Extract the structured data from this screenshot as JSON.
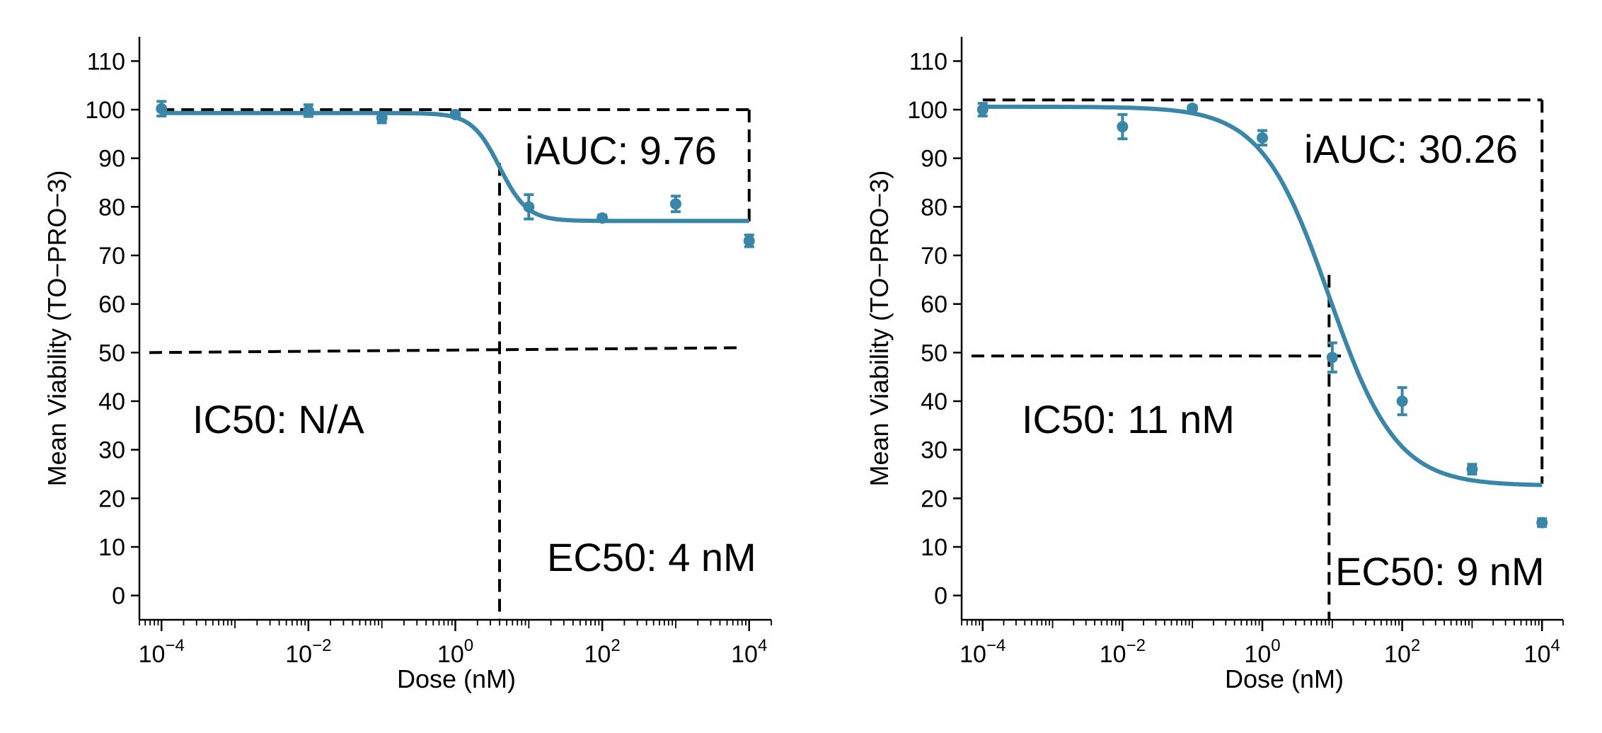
{
  "chart_data": [
    {
      "type": "scatter",
      "xlabel": "Dose (nM)",
      "ylabel": "Mean Viability (TO−PRO−3)",
      "x_scale": "log10",
      "xlim": [
        5e-05,
        20000
      ],
      "ylim": [
        -5,
        115
      ],
      "x_ticks": [
        "10^-4",
        "10^-2",
        "10^0",
        "10^2",
        "10^4"
      ],
      "y_ticks": [
        0,
        10,
        20,
        30,
        40,
        50,
        60,
        70,
        80,
        90,
        100,
        110
      ],
      "grid": false,
      "color": "#3a86a8",
      "series": [
        {
          "x": [
            0.0001,
            0.01,
            0.1,
            1,
            10,
            100,
            1000,
            10000
          ],
          "y": [
            100.2,
            99.8,
            98.3,
            99.0,
            80.0,
            77.7,
            80.6,
            73.0
          ],
          "err": [
            1.5,
            1.2,
            1.0,
            0.5,
            2.5,
            0.6,
            1.6,
            1.2
          ]
        }
      ],
      "fit": {
        "top": 99.3,
        "bottom": 77.1,
        "ec50": 4,
        "hill": 2.3
      },
      "reference_lines": {
        "top_y": 100,
        "bottom_y": 77,
        "half_y": 50,
        "half_y_end": 51,
        "ec50_x": 4,
        "ec50_y_top": 89,
        "right_x": 10000
      },
      "annotations": {
        "iauc": "iAUC: 9.76",
        "ic50": "IC50: N/A",
        "ec50": "EC50: 4 nM"
      }
    },
    {
      "type": "scatter",
      "xlabel": "Dose (nM)",
      "ylabel": "Mean Viability (TO−PRO−3)",
      "x_scale": "log10",
      "xlim": [
        5e-05,
        20000
      ],
      "ylim": [
        -5,
        115
      ],
      "x_ticks": [
        "10^-4",
        "10^-2",
        "10^0",
        "10^2",
        "10^4"
      ],
      "y_ticks": [
        0,
        10,
        20,
        30,
        40,
        50,
        60,
        70,
        80,
        90,
        100,
        110
      ],
      "grid": false,
      "color": "#3a86a8",
      "series": [
        {
          "x": [
            0.0001,
            0.01,
            0.1,
            1,
            10,
            100,
            1000,
            10000
          ],
          "y": [
            100.0,
            96.5,
            100.3,
            94.2,
            49.0,
            40.0,
            26.0,
            15.0
          ],
          "err": [
            1.3,
            2.5,
            0.5,
            1.5,
            3.0,
            2.8,
            1.0,
            0.8
          ]
        }
      ],
      "fit": {
        "top": 100.6,
        "bottom": 22.6,
        "ec50": 9,
        "hill": 0.9
      },
      "reference_lines": {
        "top_y": 102,
        "bottom_y": 23,
        "half_y": 49.3,
        "half_y_end": 49.3,
        "ec50_x": 9,
        "ec50_y_top": 66,
        "right_x": 10000
      },
      "annotations": {
        "iauc": "iAUC: 30.26",
        "ic50": "IC50: 11 nM",
        "ec50": "EC50: 9 nM"
      }
    }
  ]
}
